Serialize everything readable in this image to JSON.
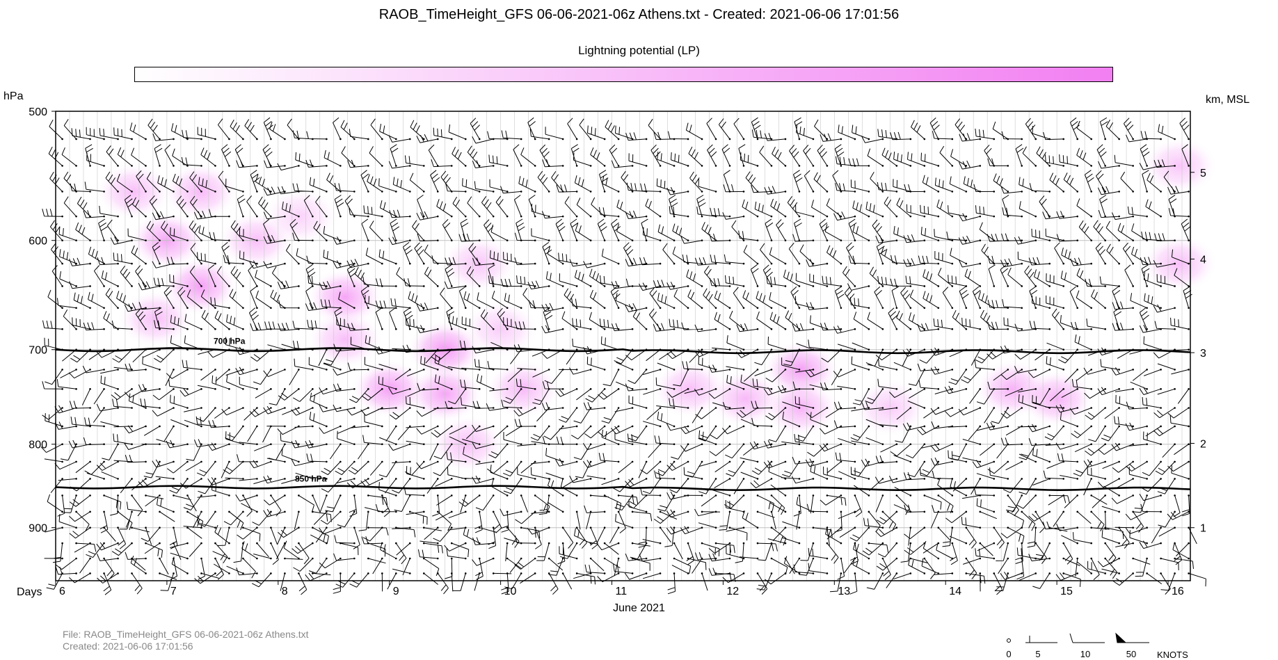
{
  "title": "RAOB_TimeHeight_GFS 06-06-2021-06z Athens.txt - Created:  2021-06-06  17:01:56",
  "colorbar": {
    "label": "Lightning potential (LP)",
    "color_low": "#ffffff",
    "color_high": "#f27ff2"
  },
  "left_axis_label": "hPa",
  "right_axis_label": "km, MSL",
  "x_axis_prefix": "Days",
  "x_axis_label": "June 2021",
  "file_info": {
    "file": "File: RAOB_TimeHeight_GFS 06-06-2021-06z Athens.txt",
    "created": "Created:  2021-06-06  17:01:56"
  },
  "legend": {
    "values": [
      "0",
      "5",
      "10",
      "50"
    ],
    "unit": "KNOTS"
  },
  "chart_data": {
    "type": "heatmap",
    "title": "RAOB_TimeHeight_GFS 06-06-2021-06z Athens.txt - Created:  2021-06-06  17:01:56",
    "colorbar_label": "Lightning potential (LP)",
    "x_label": "June 2021",
    "x_range": [
      6,
      16.2
    ],
    "x_ticks": [
      6,
      7,
      8,
      9,
      10,
      11,
      12,
      13,
      14,
      15,
      16
    ],
    "y_left_label": "hPa",
    "y_left_range": [
      970,
      500
    ],
    "y_left_ticks": [
      500,
      600,
      700,
      800,
      900
    ],
    "y_right_label": "km, MSL",
    "y_right_ticks": [
      {
        "label": "1",
        "hpa": 900
      },
      {
        "label": "2",
        "hpa": 799
      },
      {
        "label": "3",
        "hpa": 703
      },
      {
        "label": "4",
        "hpa": 616
      },
      {
        "label": "5",
        "hpa": 545
      }
    ],
    "reference_lines": [
      {
        "label": "700 hPa",
        "p": 700
      },
      {
        "label": "850 hPa",
        "p": 850
      }
    ],
    "grid": true,
    "lightning_potential_areas": [
      {
        "day": 6.7,
        "p": 560,
        "value": 0.5
      },
      {
        "day": 7.0,
        "p": 600,
        "value": 0.7
      },
      {
        "day": 7.3,
        "p": 560,
        "value": 0.55
      },
      {
        "day": 7.3,
        "p": 640,
        "value": 0.75
      },
      {
        "day": 6.9,
        "p": 670,
        "value": 0.5
      },
      {
        "day": 7.8,
        "p": 600,
        "value": 0.5
      },
      {
        "day": 8.2,
        "p": 580,
        "value": 0.35
      },
      {
        "day": 8.6,
        "p": 650,
        "value": 0.7
      },
      {
        "day": 8.6,
        "p": 690,
        "value": 0.5
      },
      {
        "day": 9.0,
        "p": 740,
        "value": 0.75
      },
      {
        "day": 9.5,
        "p": 700,
        "value": 0.8
      },
      {
        "day": 9.5,
        "p": 745,
        "value": 0.7
      },
      {
        "day": 9.8,
        "p": 620,
        "value": 0.45
      },
      {
        "day": 9.7,
        "p": 800,
        "value": 0.5
      },
      {
        "day": 10.2,
        "p": 740,
        "value": 0.55
      },
      {
        "day": 10.0,
        "p": 680,
        "value": 0.4
      },
      {
        "day": 11.7,
        "p": 740,
        "value": 0.5
      },
      {
        "day": 12.2,
        "p": 750,
        "value": 0.55
      },
      {
        "day": 12.7,
        "p": 720,
        "value": 0.75
      },
      {
        "day": 12.7,
        "p": 760,
        "value": 0.6
      },
      {
        "day": 13.5,
        "p": 760,
        "value": 0.4
      },
      {
        "day": 14.6,
        "p": 740,
        "value": 0.6
      },
      {
        "day": 15.0,
        "p": 750,
        "value": 0.6
      },
      {
        "day": 16.1,
        "p": 540,
        "value": 0.45
      },
      {
        "day": 16.1,
        "p": 620,
        "value": 0.5
      }
    ]
  }
}
